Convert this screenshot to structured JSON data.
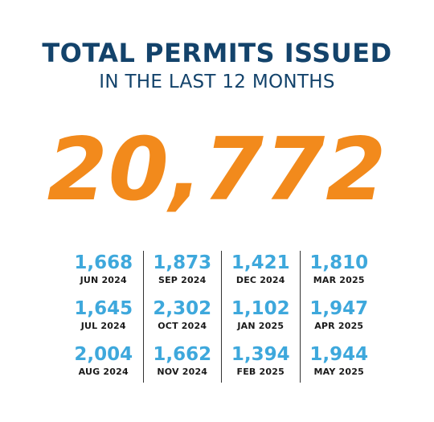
{
  "header": {
    "title": "TOTAL PERMITS ISSUED",
    "subtitle": "IN THE LAST 12 MONTHS"
  },
  "total": "20,772",
  "colors": {
    "title": "#13436b",
    "total": "#f28a1c",
    "value": "#3ea8dc",
    "month": "#1a1a1a",
    "divider": "#333333"
  },
  "columns": [
    [
      {
        "value": "1,668",
        "month": "JUN 2024"
      },
      {
        "value": "1,645",
        "month": "JUL 2024"
      },
      {
        "value": "2,004",
        "month": "AUG 2024"
      }
    ],
    [
      {
        "value": "1,873",
        "month": "SEP 2024"
      },
      {
        "value": "2,302",
        "month": "OCT 2024"
      },
      {
        "value": "1,662",
        "month": "NOV 2024"
      }
    ],
    [
      {
        "value": "1,421",
        "month": "DEC 2024"
      },
      {
        "value": "1,102",
        "month": "JAN 2025"
      },
      {
        "value": "1,394",
        "month": "FEB 2025"
      }
    ],
    [
      {
        "value": "1,810",
        "month": "MAR 2025"
      },
      {
        "value": "1,947",
        "month": "APR 2025"
      },
      {
        "value": "1,944",
        "month": "MAY 2025"
      }
    ]
  ]
}
